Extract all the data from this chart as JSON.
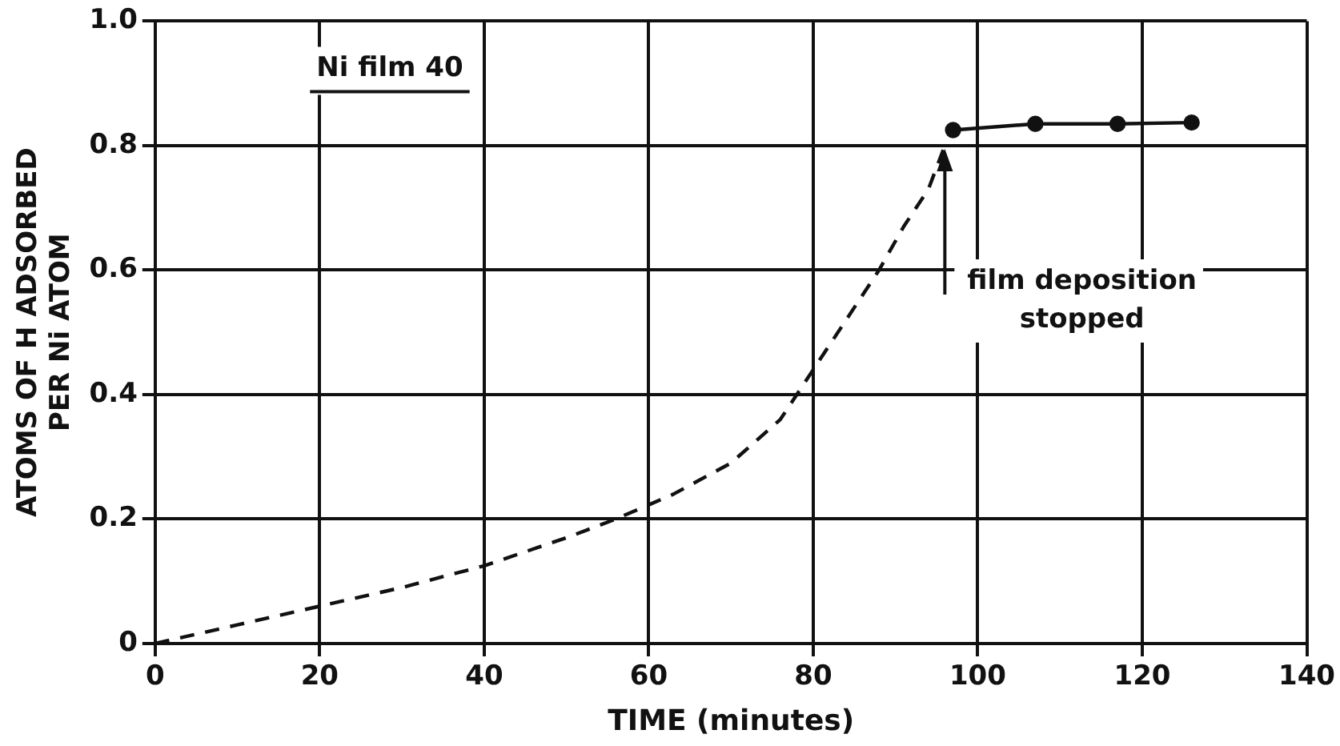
{
  "chart_data": {
    "type": "line",
    "xlabel": "TIME (minutes)",
    "ylabel": "ATOMS OF H ADSORBED\nPER Ni ATOM",
    "xlim": [
      0,
      140
    ],
    "xticks": [
      0,
      20,
      40,
      60,
      80,
      100,
      120,
      140
    ],
    "ylim": [
      0,
      1.0
    ],
    "yticks": [
      0,
      0.2,
      0.4,
      0.6,
      0.8,
      {
        "value": 1.0,
        "label": "1.0"
      }
    ],
    "grid": true,
    "legend": false,
    "series": [
      {
        "color": "#111111",
        "line_style": "dashed",
        "marker": "none",
        "x": [
          0,
          10,
          20,
          30,
          40,
          50,
          56,
          63,
          70,
          76,
          80,
          84,
          88,
          91,
          94,
          96
        ],
        "values": [
          0,
          0.03,
          0.06,
          0.09,
          0.125,
          0.17,
          0.2,
          0.24,
          0.29,
          0.36,
          0.44,
          0.52,
          0.6,
          0.67,
          0.73,
          0.8
        ]
      },
      {
        "color": "#111111",
        "line_style": "solid",
        "marker": "circle",
        "x": [
          97,
          107,
          117,
          126
        ],
        "values": [
          0.825,
          0.835,
          0.835,
          0.837
        ]
      }
    ],
    "annotations": [
      "Ni film 40",
      {
        "text": "film deposition\nstopped",
        "x": 96,
        "y": 0.8
      }
    ]
  }
}
